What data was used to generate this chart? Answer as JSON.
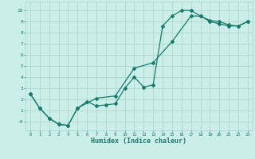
{
  "xlabel": "Humidex (Indice chaleur)",
  "bg_color": "#cceee8",
  "grid_color": "#aad8d0",
  "line_color": "#1a7a6e",
  "xlim": [
    -0.5,
    23.5
  ],
  "ylim": [
    -0.8,
    10.8
  ],
  "xticks": [
    0,
    1,
    2,
    3,
    4,
    5,
    6,
    7,
    8,
    9,
    10,
    11,
    12,
    13,
    14,
    15,
    16,
    17,
    18,
    19,
    20,
    21,
    22,
    23
  ],
  "yticks": [
    0,
    1,
    2,
    3,
    4,
    5,
    6,
    7,
    8,
    9,
    10
  ],
  "ytick_labels": [
    "-0",
    "1",
    "2",
    "3",
    "4",
    "5",
    "6",
    "7",
    "8",
    "9",
    "10"
  ],
  "line1_x": [
    0,
    1,
    2,
    3,
    4,
    5,
    6,
    7,
    8,
    9,
    10,
    11,
    12,
    13,
    14,
    15,
    16,
    17,
    18,
    19,
    20,
    21,
    22,
    23
  ],
  "line1_y": [
    2.5,
    1.2,
    0.3,
    -0.25,
    -0.35,
    1.2,
    1.8,
    1.4,
    1.5,
    1.6,
    3.0,
    4.0,
    3.1,
    3.3,
    8.6,
    9.5,
    10.0,
    10.0,
    9.5,
    9.1,
    9.0,
    8.7,
    8.6,
    9.0
  ],
  "line2_x": [
    0,
    1,
    2,
    3,
    4,
    5,
    7,
    9,
    11,
    13,
    15,
    17,
    18,
    19,
    20,
    21,
    22,
    23
  ],
  "line2_y": [
    2.5,
    1.2,
    0.3,
    -0.25,
    -0.35,
    1.2,
    2.1,
    2.3,
    4.8,
    5.3,
    7.2,
    9.5,
    9.5,
    9.0,
    8.8,
    8.6,
    8.6,
    9.0
  ]
}
